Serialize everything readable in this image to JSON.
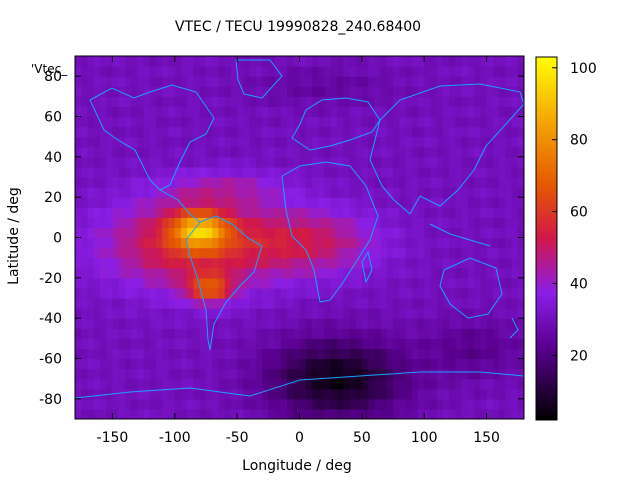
{
  "chart_data": {
    "type": "heatmap",
    "title": "VTEC / TECU 19990828_240.68400",
    "xlabel": "Longitude / deg",
    "ylabel": "Latitude / deg",
    "legend_key": "'Vtec_",
    "xlim": [
      -180,
      180
    ],
    "ylim": [
      -90,
      90
    ],
    "x_ticks": [
      -150,
      -100,
      -50,
      0,
      50,
      100,
      150
    ],
    "y_ticks": [
      -80,
      -60,
      -40,
      -20,
      0,
      20,
      40,
      60,
      80
    ],
    "colorbar": {
      "range": [
        2,
        103
      ],
      "ticks": [
        20,
        40,
        60,
        80,
        100
      ],
      "palette": "black-purple-red-orange-yellow"
    },
    "grid_resolution_deg": 5,
    "features": [
      {
        "region": "equatorial anomaly over the Americas/Atlantic",
        "lon": [
          -150,
          70
        ],
        "lat": [
          -35,
          30
        ],
        "tec": 60
      },
      {
        "region": "peak over northern South America",
        "lon": -80,
        "lat": 2,
        "tec": 100
      },
      {
        "region": "secondary peak over southern Brazil",
        "lon": -75,
        "lat": -25,
        "tec": 90
      },
      {
        "region": "night-side minimum south of Africa",
        "lon": 40,
        "lat": -75,
        "tec": 2
      },
      {
        "region": "background over Asia/Pacific",
        "lon": [
          90,
          180
        ],
        "lat": [
          -60,
          60
        ],
        "tec": 30
      }
    ],
    "overlay": "coastlines"
  }
}
